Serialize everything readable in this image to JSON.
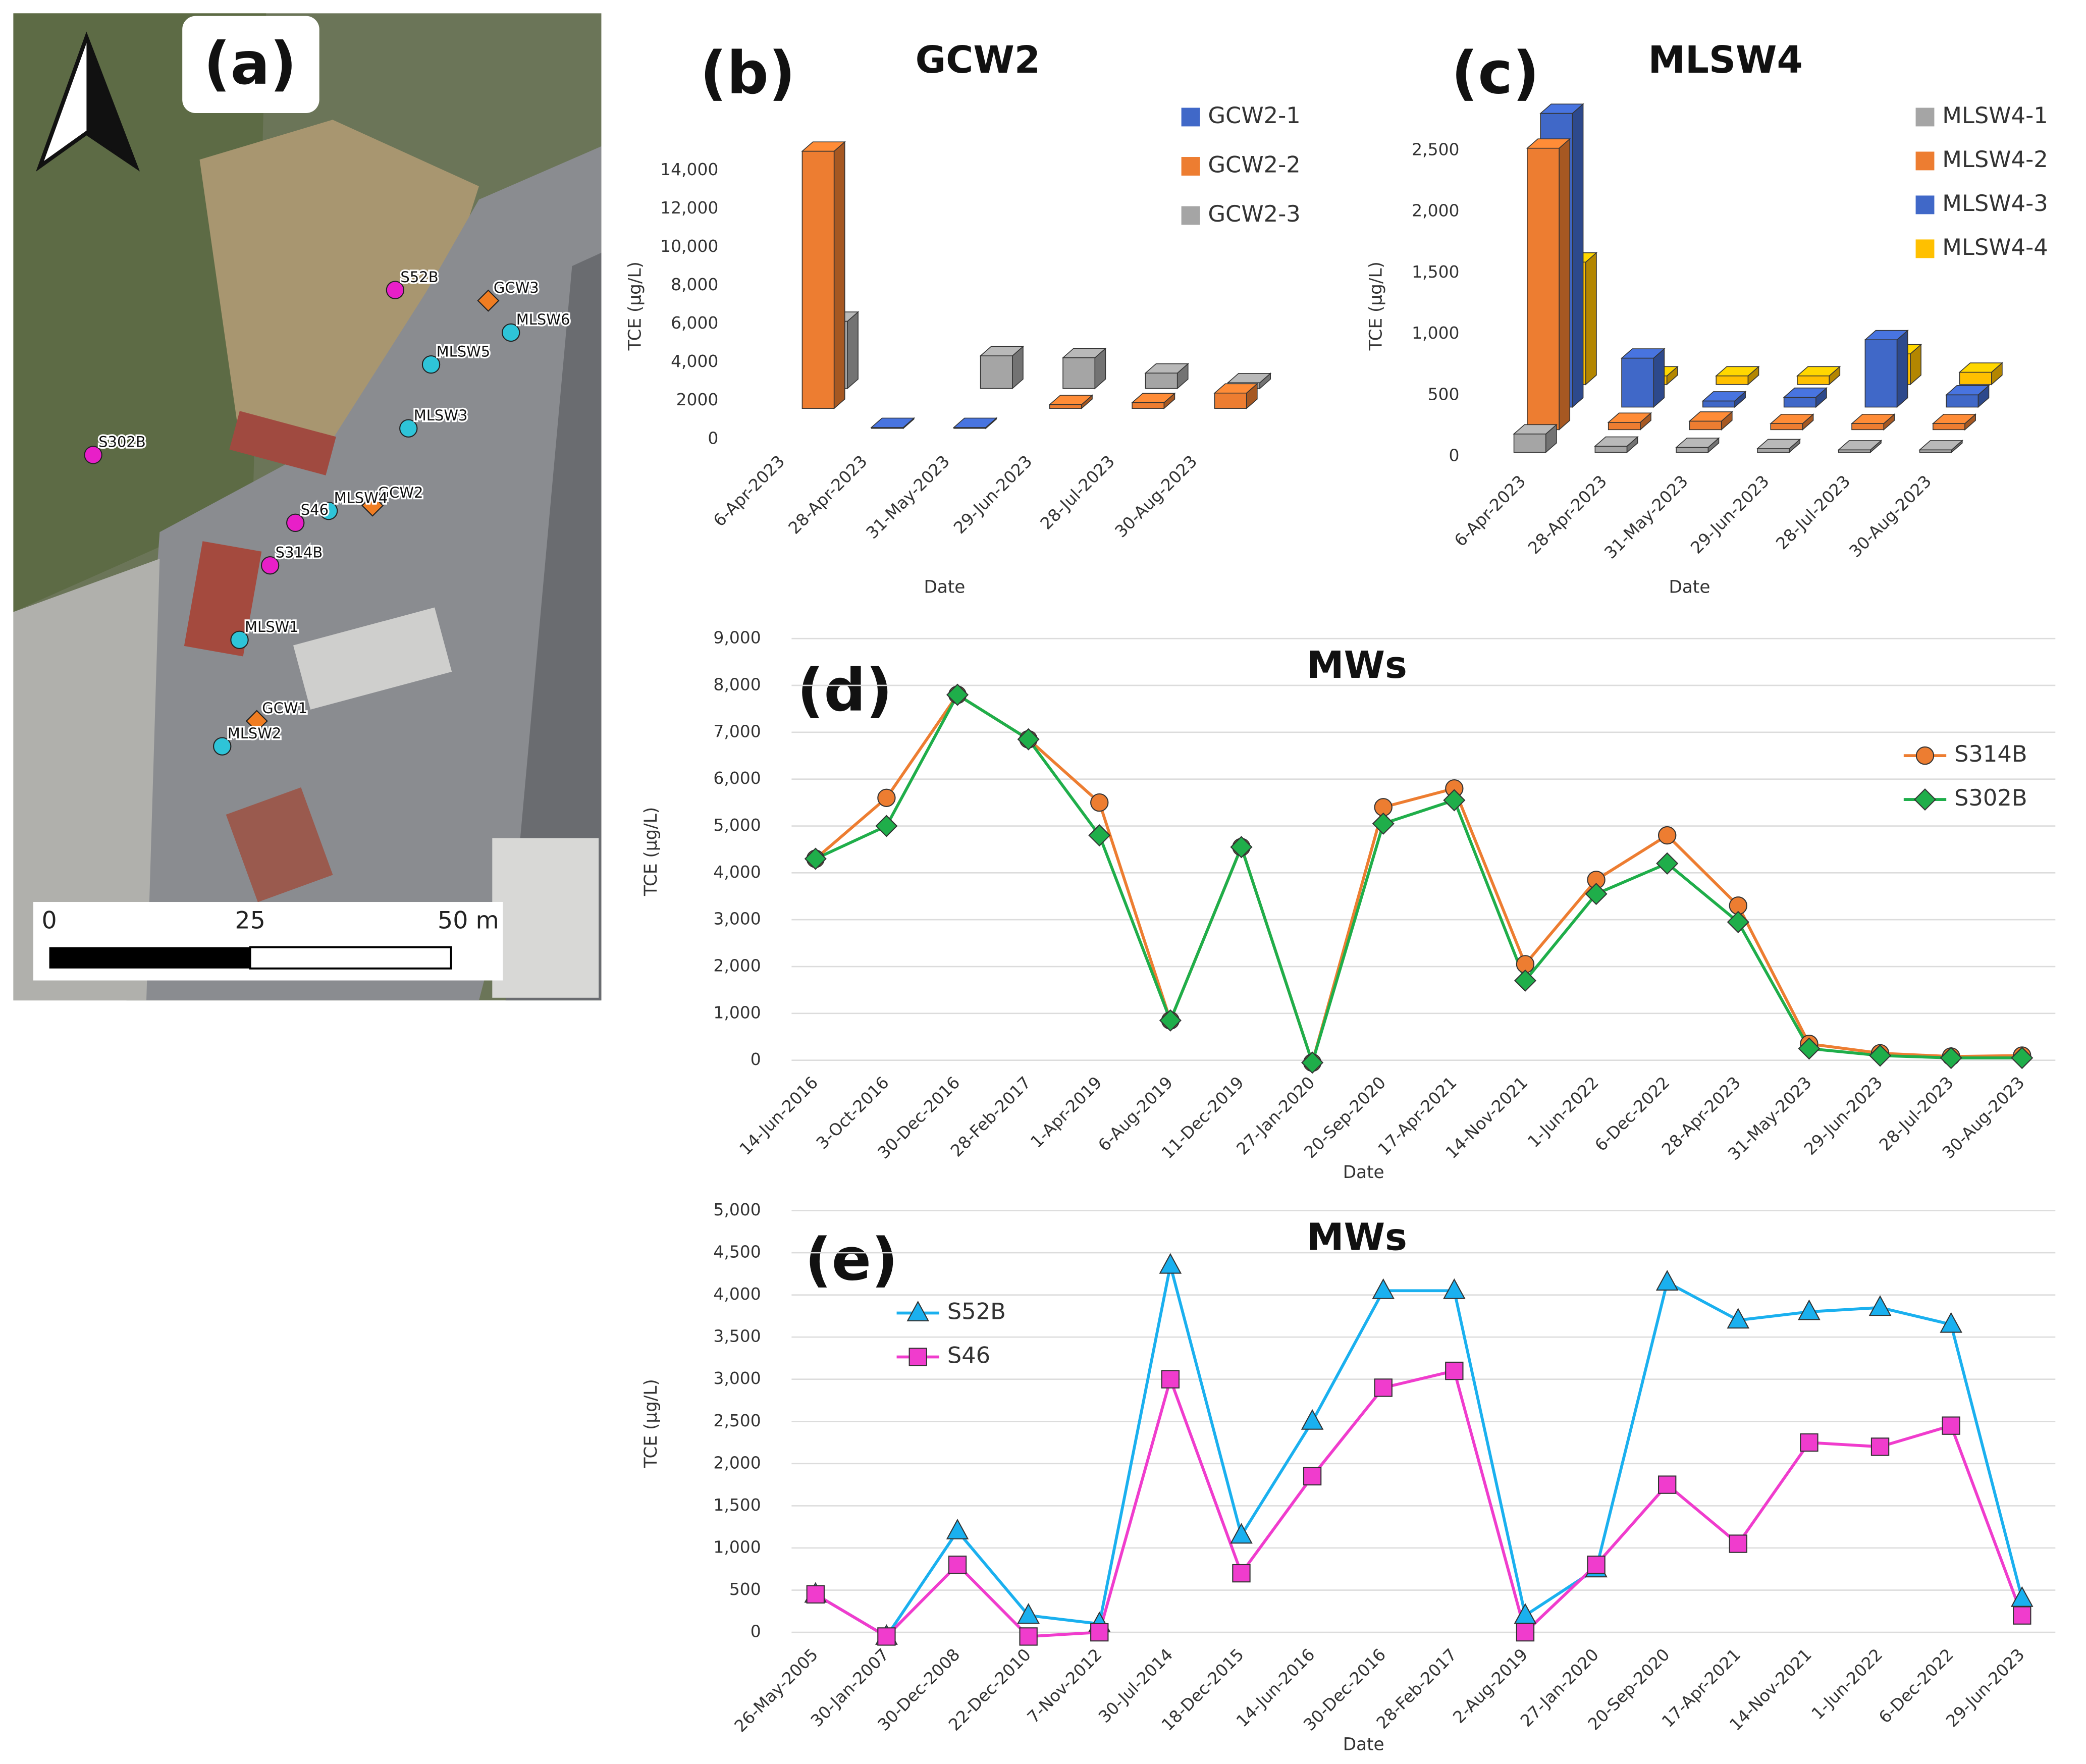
{
  "map": {
    "label": "(a)",
    "wells": [
      {
        "name": "S52B",
        "color": "#e81fc8",
        "marker": "circle"
      },
      {
        "name": "GCW3",
        "color": "#f07d22",
        "marker": "diamond"
      },
      {
        "name": "MLSW6",
        "color": "#2ec4d8",
        "marker": "circle"
      },
      {
        "name": "MLSW5",
        "color": "#2ec4d8",
        "marker": "circle"
      },
      {
        "name": "MLSW3",
        "color": "#2ec4d8",
        "marker": "circle"
      },
      {
        "name": "S302B",
        "color": "#e81fc8",
        "marker": "circle"
      },
      {
        "name": "GCW2",
        "color": "#f07d22",
        "marker": "diamond"
      },
      {
        "name": "MLSW4",
        "color": "#2ec4d8",
        "marker": "circle"
      },
      {
        "name": "S46",
        "color": "#e81fc8",
        "marker": "circle"
      },
      {
        "name": "S314B",
        "color": "#e81fc8",
        "marker": "circle"
      },
      {
        "name": "MLSW1",
        "color": "#2ec4d8",
        "marker": "circle"
      },
      {
        "name": "GCW1",
        "color": "#f07d22",
        "marker": "diamond"
      },
      {
        "name": "MLSW2",
        "color": "#2ec4d8",
        "marker": "circle"
      }
    ],
    "scale_labels": [
      "0",
      "25",
      "50 m"
    ]
  },
  "chart_data": [
    {
      "type": "bar",
      "three_d": true,
      "panel_label": "(b)",
      "title": "GCW2",
      "x_label": "Date",
      "y_label": "TCE (μg/L)",
      "categories": [
        "6-Apr-2023",
        "28-Apr-2023",
        "31-May-2023",
        "29-Jun-2023",
        "28-Jul-2023",
        "30-Aug-2023"
      ],
      "series": [
        {
          "name": "GCW2-1",
          "color": "#4068c8",
          "values": [
            null,
            50,
            50,
            null,
            null,
            null
          ]
        },
        {
          "name": "GCW2-2",
          "color": "#ed7d31",
          "values": [
            13400,
            null,
            null,
            200,
            300,
            800
          ]
        },
        {
          "name": "GCW2-3",
          "color": "#a5a5a5",
          "values": [
            3500,
            null,
            1700,
            1600,
            800,
            300
          ]
        }
      ],
      "ylim": [
        0,
        14000
      ],
      "yticks": [
        0,
        2000,
        {
          "value": 4000,
          "label": "4,000"
        },
        {
          "value": 6000,
          "label": "6,000"
        },
        {
          "value": 8000,
          "label": "8,000"
        },
        {
          "value": 10000,
          "label": "10,000"
        },
        {
          "value": 12000,
          "label": "12,000"
        },
        {
          "value": 14000,
          "label": "14,000"
        }
      ],
      "grid": false
    },
    {
      "type": "bar",
      "three_d": true,
      "panel_label": "(c)",
      "title": "MLSW4",
      "x_label": "Date",
      "y_label": "TCE (μg/L)",
      "categories": [
        "6-Apr-2023",
        "28-Apr-2023",
        "31-May-2023",
        "29-Jun-2023",
        "28-Jul-2023",
        "30-Aug-2023"
      ],
      "series": [
        {
          "name": "MLSW4-1",
          "color": "#a5a5a5",
          "values": [
            150,
            50,
            40,
            30,
            20,
            20
          ]
        },
        {
          "name": "MLSW4-2",
          "color": "#ed7d31",
          "values": [
            2300,
            60,
            70,
            50,
            50,
            50
          ]
        },
        {
          "name": "MLSW4-3",
          "color": "#4068c8",
          "values": [
            2400,
            400,
            50,
            80,
            550,
            100
          ]
        },
        {
          "name": "MLSW4-4",
          "color": "#ffc000",
          "values": [
            1000,
            70,
            70,
            70,
            250,
            100
          ]
        }
      ],
      "ylim": [
        0,
        2500
      ],
      "yticks": [
        0,
        500,
        {
          "value": 1000,
          "label": "1,000"
        },
        {
          "value": 1500,
          "label": "1,500"
        },
        {
          "value": 2000,
          "label": "2,000"
        },
        {
          "value": 2500,
          "label": "2,500"
        }
      ],
      "grid": false
    },
    {
      "type": "line",
      "panel_label": "(d)",
      "title": "MWs",
      "x_label": "Date",
      "y_label": "TCE (μg/L)",
      "categories": [
        "14-Jun-2016",
        "3-Oct-2016",
        "30-Dec-2016",
        "28-Feb-2017",
        "1-Apr-2019",
        "6-Aug-2019",
        "11-Dec-2019",
        "27-Jan-2020",
        "20-Sep-2020",
        "17-Apr-2021",
        "14-Nov-2021",
        "1-Jun-2022",
        "6-Dec-2022",
        "28-Apr-2023",
        "31-May-2023",
        "29-Jun-2023",
        "28-Jul-2023",
        "30-Aug-2023"
      ],
      "series": [
        {
          "name": "S314B",
          "color": "#ed7d31",
          "marker": "circle",
          "values": [
            4300,
            5600,
            7800,
            6850,
            5500,
            850,
            4550,
            -50,
            5400,
            5800,
            2050,
            3850,
            4800,
            3300,
            350,
            150,
            80,
            100
          ]
        },
        {
          "name": "S302B",
          "color": "#1fae4a",
          "marker": "diamond",
          "values": [
            4300,
            5000,
            7800,
            6850,
            4800,
            850,
            4550,
            -50,
            5050,
            5550,
            1700,
            3550,
            4200,
            2950,
            250,
            100,
            50,
            50
          ]
        }
      ],
      "ylim": [
        0,
        9000
      ],
      "yticks": [
        0,
        {
          "value": 1000,
          "label": "1,000"
        },
        {
          "value": 2000,
          "label": "2,000"
        },
        {
          "value": 3000,
          "label": "3,000"
        },
        {
          "value": 4000,
          "label": "4,000"
        },
        {
          "value": 5000,
          "label": "5,000"
        },
        {
          "value": 6000,
          "label": "6,000"
        },
        {
          "value": 7000,
          "label": "7,000"
        },
        {
          "value": 8000,
          "label": "8,000"
        },
        {
          "value": 9000,
          "label": "9,000"
        }
      ],
      "grid": true
    },
    {
      "type": "line",
      "panel_label": "(e)",
      "title": "MWs",
      "x_label": "Date",
      "y_label": "TCE (μg/L)",
      "categories": [
        "26-May-2005",
        "30-Jan-2007",
        "30-Dec-2008",
        "22-Dec-2010",
        "7-Nov-2012",
        "30-Jul-2014",
        "18-Dec-2015",
        "14-Jun-2016",
        "30-Dec-2016",
        "28-Feb-2017",
        "2-Aug-2019",
        "27-Jan-2020",
        "20-Sep-2020",
        "17-Apr-2021",
        "14-Nov-2021",
        "1-Jun-2022",
        "6-Dec-2022",
        "29-Jun-2023"
      ],
      "series": [
        {
          "name": "S52B",
          "color": "#1ab0ef",
          "marker": "triangle",
          "values": [
            450,
            -50,
            1200,
            200,
            100,
            4350,
            1150,
            2500,
            4050,
            4050,
            200,
            750,
            4150,
            3700,
            3800,
            3850,
            3650,
            400
          ]
        },
        {
          "name": "S46",
          "color": "#f03ccd",
          "marker": "square",
          "values": [
            450,
            -50,
            800,
            -50,
            0,
            3000,
            700,
            1850,
            2900,
            3100,
            0,
            800,
            1750,
            1050,
            2250,
            2200,
            2450,
            200
          ]
        }
      ],
      "ylim": [
        0,
        5000
      ],
      "yticks": [
        0,
        500,
        {
          "value": 1000,
          "label": "1,000"
        },
        {
          "value": 1500,
          "label": "1,500"
        },
        {
          "value": 2000,
          "label": "2,000"
        },
        {
          "value": 2500,
          "label": "2,500"
        },
        {
          "value": 3000,
          "label": "3,000"
        },
        {
          "value": 3500,
          "label": "3,500"
        },
        {
          "value": 4000,
          "label": "4,000"
        },
        {
          "value": 4500,
          "label": "4,500"
        },
        {
          "value": 5000,
          "label": "5,000"
        }
      ],
      "grid": true
    }
  ]
}
